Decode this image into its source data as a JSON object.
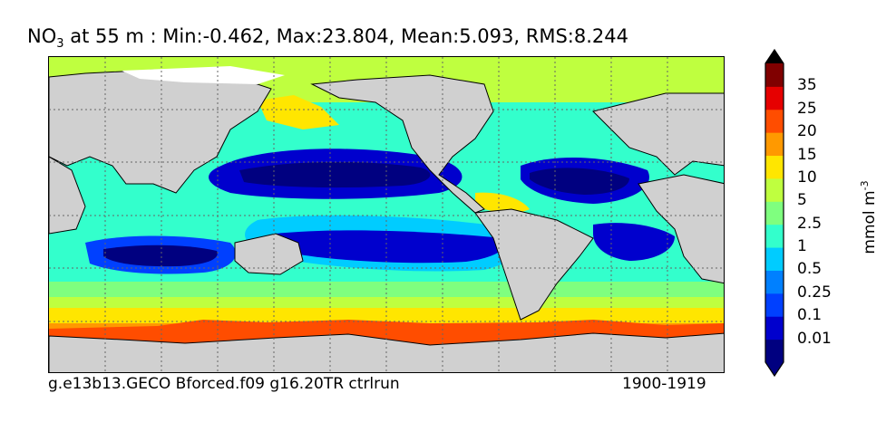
{
  "title": {
    "variable": "NO",
    "subscript": "3",
    "rest": " at 55 m : Min:-0.462, Max:23.804, Mean:5.093, RMS:8.244"
  },
  "caption_left": "g.e13b13.GECO Bforced.f09 g16.20TR ctrlrun",
  "caption_right": "1900-1919",
  "colorbar": {
    "unit_base": "mmol m",
    "unit_exp": "-3",
    "ticks": [
      "35",
      "25",
      "20",
      "15",
      "10",
      "5",
      "2.5",
      "1",
      "0.5",
      "0.25",
      "0.1",
      "0.01"
    ],
    "colors": [
      "#000080",
      "#0000cd",
      "#0040ff",
      "#0080ff",
      "#00ccff",
      "#33ffcc",
      "#7fff7f",
      "#bfff3f",
      "#ffe600",
      "#ff9900",
      "#ff4d00",
      "#e60000",
      "#800000"
    ]
  },
  "colors": {
    "land": "#d0d0d0",
    "grid": "#666666"
  }
}
